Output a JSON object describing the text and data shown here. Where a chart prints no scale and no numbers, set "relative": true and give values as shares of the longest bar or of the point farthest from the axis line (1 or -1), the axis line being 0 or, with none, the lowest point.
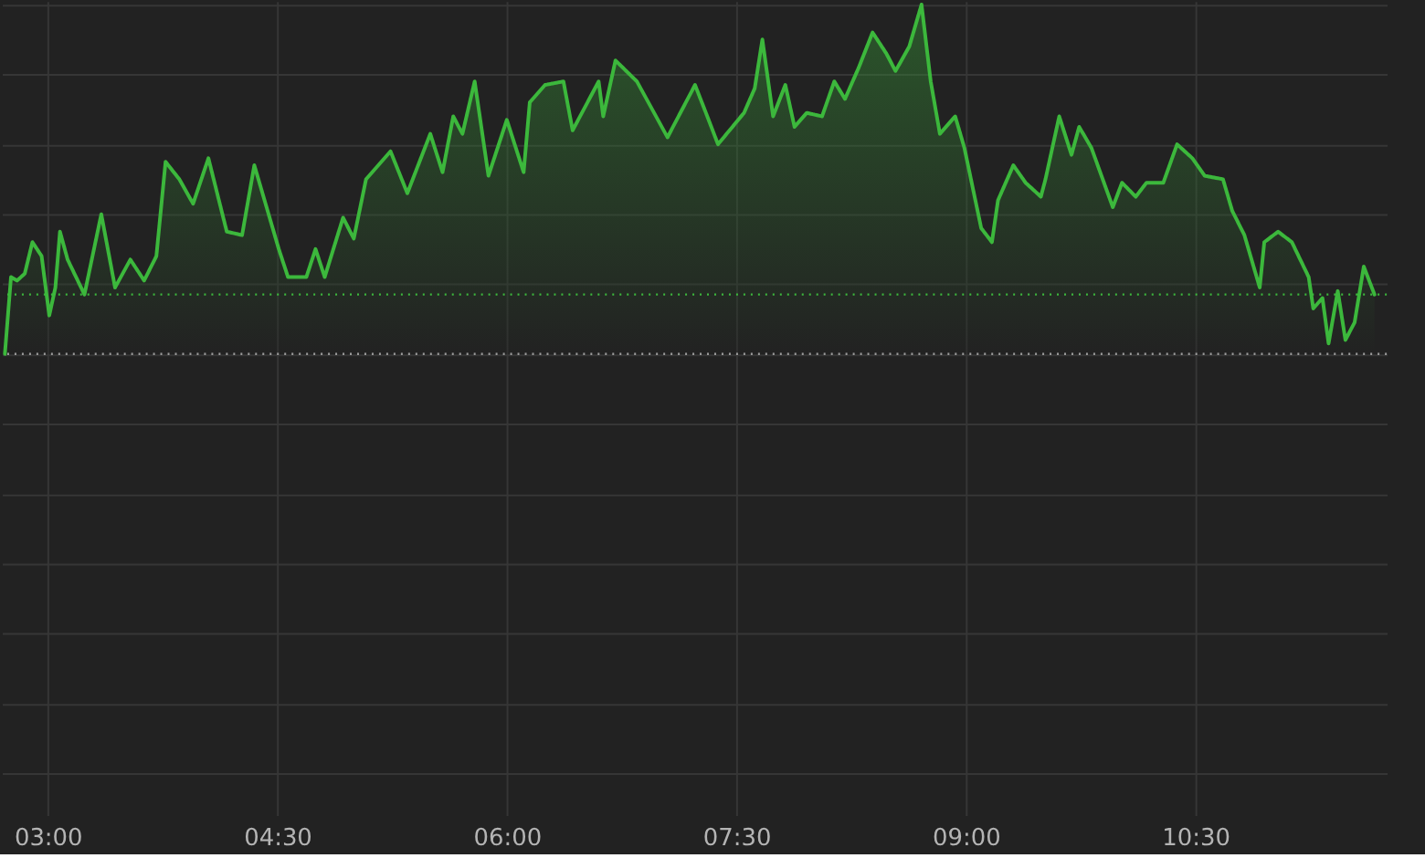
{
  "chart_data": {
    "type": "area",
    "relative": true,
    "x": [
      2.72,
      2.76,
      2.8,
      2.85,
      2.9,
      2.96,
      3.01,
      3.05,
      3.08,
      3.13,
      3.24,
      3.35,
      3.44,
      3.54,
      3.63,
      3.71,
      3.77,
      3.86,
      3.95,
      4.05,
      4.17,
      4.27,
      4.35,
      4.51,
      4.57,
      4.69,
      4.75,
      4.81,
      4.93,
      5.0,
      5.08,
      5.24,
      5.35,
      5.5,
      5.58,
      5.65,
      5.71,
      5.79,
      5.88,
      6.0,
      6.11,
      6.15,
      6.25,
      6.37,
      6.43,
      6.6,
      6.63,
      6.71,
      6.85,
      7.05,
      7.23,
      7.31,
      7.38,
      7.55,
      7.62,
      7.67,
      7.74,
      7.82,
      7.88,
      7.96,
      8.06,
      8.14,
      8.21,
      8.3,
      8.39,
      8.48,
      8.54,
      8.63,
      8.71,
      8.77,
      8.83,
      8.93,
      8.99,
      9.1,
      9.17,
      9.21,
      9.31,
      9.39,
      9.49,
      9.52,
      9.61,
      9.69,
      9.74,
      9.82,
      9.96,
      10.02,
      10.11,
      10.18,
      10.29,
      10.38,
      10.48,
      10.56,
      10.68,
      10.74,
      10.82,
      10.86,
      10.92,
      10.95,
      11.04,
      11.13,
      11.24,
      11.27,
      11.33,
      11.37,
      11.43,
      11.48,
      11.54,
      11.6,
      11.67
    ],
    "series": [
      {
        "color": "#3cb83c",
        "values": [
          0.0,
          0.22,
          0.21,
          0.23,
          0.32,
          0.28,
          0.11,
          0.19,
          0.35,
          0.27,
          0.17,
          0.4,
          0.19,
          0.27,
          0.21,
          0.28,
          0.55,
          0.5,
          0.43,
          0.56,
          0.35,
          0.34,
          0.54,
          0.3,
          0.22,
          0.22,
          0.3,
          0.22,
          0.39,
          0.33,
          0.5,
          0.58,
          0.46,
          0.63,
          0.52,
          0.68,
          0.63,
          0.78,
          0.51,
          0.67,
          0.52,
          0.72,
          0.77,
          0.78,
          0.64,
          0.78,
          0.68,
          0.84,
          0.78,
          0.62,
          0.77,
          0.68,
          0.6,
          0.69,
          0.76,
          0.9,
          0.68,
          0.77,
          0.65,
          0.69,
          0.68,
          0.78,
          0.73,
          0.82,
          0.92,
          0.86,
          0.81,
          0.88,
          1.0,
          0.78,
          0.63,
          0.68,
          0.59,
          0.36,
          0.32,
          0.44,
          0.54,
          0.49,
          0.45,
          0.5,
          0.68,
          0.57,
          0.65,
          0.59,
          0.42,
          0.49,
          0.45,
          0.49,
          0.49,
          0.6,
          0.56,
          0.51,
          0.5,
          0.41,
          0.34,
          0.28,
          0.19,
          0.32,
          0.35,
          0.32,
          0.22,
          0.13,
          0.16,
          0.03,
          0.18,
          0.04,
          0.09,
          0.25,
          0.17
        ]
      }
    ],
    "xlim": [
      2.7,
      11.75
    ],
    "xticks": [
      {
        "value": 3,
        "label": "03:00"
      },
      {
        "value": 4.5,
        "label": "04:30"
      },
      {
        "value": 6,
        "label": "06:00"
      },
      {
        "value": 7.5,
        "label": "07:30"
      },
      {
        "value": 9,
        "label": "09:00"
      },
      {
        "value": 10.5,
        "label": "10:30"
      }
    ],
    "grid": true,
    "ref_lines": [
      {
        "axis": "y",
        "value": 0.17,
        "color": "#3cb83c",
        "line_style": "dotted"
      },
      {
        "axis": "y",
        "value": 0,
        "color": "#9a9a9a",
        "line_style": "dotted"
      }
    ],
    "marker": "none",
    "line_style": "solid"
  }
}
